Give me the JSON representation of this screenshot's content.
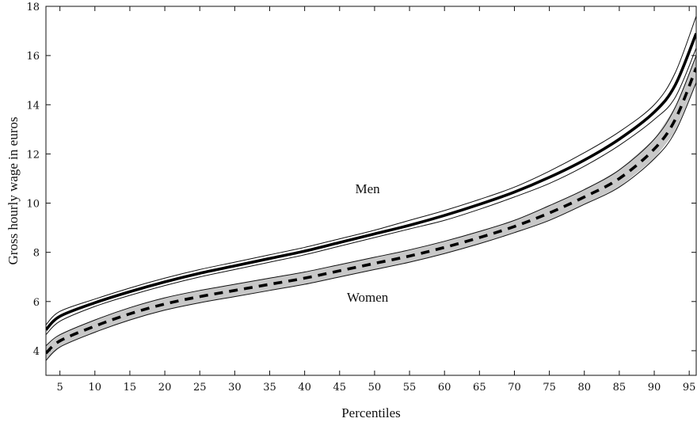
{
  "chart_data": {
    "type": "line",
    "xlabel": "Percentiles",
    "ylabel": "Gross hourly wage in euros",
    "xlim": [
      3,
      96
    ],
    "ylim": [
      3,
      18
    ],
    "xticks": [
      5,
      10,
      15,
      20,
      25,
      30,
      35,
      40,
      45,
      50,
      55,
      60,
      65,
      70,
      75,
      80,
      85,
      90,
      95
    ],
    "yticks": [
      4,
      6,
      8,
      10,
      12,
      14,
      16,
      18
    ],
    "grid": false,
    "annotations": [
      {
        "text": "Men",
        "x": 49,
        "y": 10.4
      },
      {
        "text": "Women",
        "x": 49,
        "y": 6.0
      }
    ],
    "x": [
      3,
      5,
      10,
      15,
      20,
      25,
      30,
      35,
      40,
      45,
      50,
      55,
      60,
      65,
      70,
      75,
      80,
      85,
      90,
      93,
      96
    ],
    "series": [
      {
        "name": "Men",
        "style": "solid",
        "values": [
          4.85,
          5.4,
          5.95,
          6.4,
          6.8,
          7.15,
          7.45,
          7.75,
          8.05,
          8.4,
          8.75,
          9.1,
          9.5,
          9.95,
          10.45,
          11.05,
          11.75,
          12.6,
          13.7,
          14.8,
          16.9
        ],
        "band_lower": [
          4.65,
          5.2,
          5.8,
          6.25,
          6.65,
          7.0,
          7.3,
          7.6,
          7.9,
          8.25,
          8.6,
          8.95,
          9.3,
          9.75,
          10.25,
          10.8,
          11.5,
          12.35,
          13.4,
          14.3,
          16.3
        ],
        "band_upper": [
          5.05,
          5.6,
          6.1,
          6.55,
          6.95,
          7.3,
          7.6,
          7.9,
          8.2,
          8.55,
          8.9,
          9.3,
          9.7,
          10.15,
          10.65,
          11.3,
          12.05,
          12.9,
          14.0,
          15.3,
          17.6
        ]
      },
      {
        "name": "Women",
        "style": "dashed",
        "values": [
          3.9,
          4.4,
          5.0,
          5.5,
          5.9,
          6.2,
          6.45,
          6.7,
          6.95,
          7.25,
          7.55,
          7.85,
          8.2,
          8.6,
          9.05,
          9.6,
          10.25,
          11.0,
          12.2,
          13.4,
          15.5
        ],
        "band_lower": [
          3.6,
          4.15,
          4.75,
          5.25,
          5.65,
          5.95,
          6.2,
          6.45,
          6.7,
          7.0,
          7.3,
          7.6,
          7.95,
          8.35,
          8.8,
          9.3,
          9.95,
          10.65,
          11.8,
          12.9,
          14.9
        ],
        "band_upper": [
          4.2,
          4.65,
          5.25,
          5.75,
          6.15,
          6.45,
          6.7,
          6.95,
          7.2,
          7.5,
          7.8,
          8.1,
          8.45,
          8.85,
          9.3,
          9.9,
          10.55,
          11.35,
          12.6,
          13.9,
          16.0
        ]
      }
    ]
  }
}
